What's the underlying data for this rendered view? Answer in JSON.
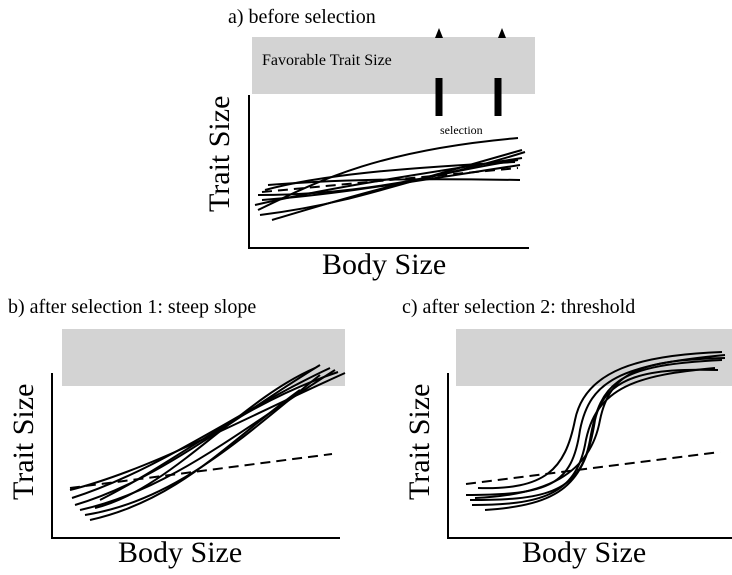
{
  "panels": {
    "a": {
      "title": "a) before selection",
      "xlabel": "Body Size",
      "ylabel": "Trait Size",
      "band_label": "Favorable Trait Size",
      "selection_label": "selection"
    },
    "b": {
      "title": "b) after selection 1: steep slope",
      "xlabel": "Body Size",
      "ylabel": "Trait Size"
    },
    "c": {
      "title": "c) after selection 2: threshold",
      "xlabel": "Body Size",
      "ylabel": "Trait Size"
    }
  },
  "colors": {
    "band": "#d3d3d3",
    "line": "#000000"
  }
}
